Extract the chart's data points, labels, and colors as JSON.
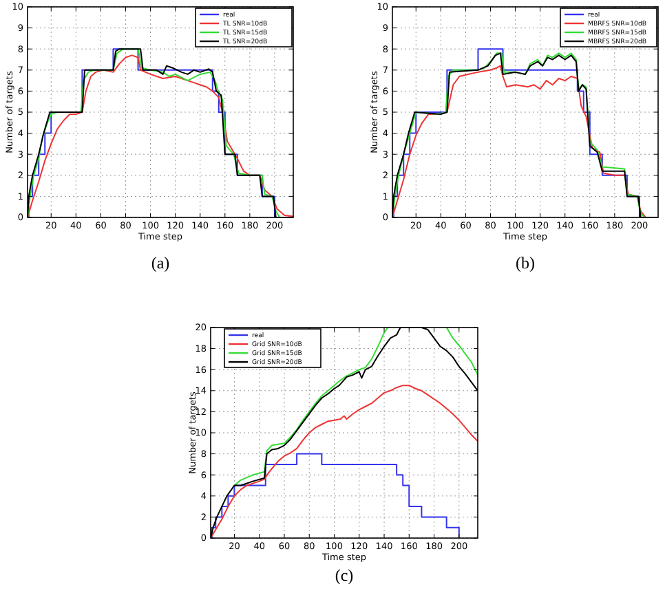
{
  "chart_data": [
    {
      "type": "line",
      "xlabel": "Time step",
      "ylabel": "Number of targets",
      "xlim": [
        1,
        215
      ],
      "xticks": [
        20,
        40,
        60,
        80,
        100,
        120,
        140,
        160,
        180,
        200
      ],
      "ylim": [
        0,
        10
      ],
      "yticks": [
        0,
        1,
        2,
        3,
        4,
        5,
        6,
        7,
        8,
        9,
        10
      ],
      "grid": true,
      "legend": "top right",
      "annotations": [
        "(a)"
      ],
      "series": [
        {
          "name": "real",
          "type": "step",
          "color": "#3333ee",
          "x": [
            1,
            2,
            5,
            10,
            15,
            20,
            45,
            70,
            90,
            150,
            155,
            160,
            170,
            190,
            200,
            215
          ],
          "values": [
            0,
            1,
            2,
            3,
            4,
            5,
            7,
            8,
            7,
            6,
            5,
            3,
            2,
            1,
            0,
            0
          ]
        },
        {
          "name": "TL SNR=10dB",
          "color": "#ee3333",
          "x": [
            1,
            5,
            10,
            15,
            20,
            25,
            30,
            35,
            40,
            45,
            48,
            52,
            56,
            62,
            70,
            75,
            80,
            85,
            90,
            92,
            100,
            110,
            120,
            125,
            130,
            135,
            140,
            145,
            150,
            155,
            158,
            162,
            166,
            170,
            175,
            180,
            188,
            192,
            198,
            202,
            208,
            215
          ],
          "values": [
            0,
            0.8,
            1.7,
            2.7,
            3.5,
            4.2,
            4.6,
            4.9,
            4.9,
            5.0,
            6.0,
            6.7,
            6.9,
            7.0,
            6.9,
            7.3,
            7.6,
            7.7,
            7.6,
            7.0,
            6.8,
            6.6,
            6.7,
            6.6,
            6.5,
            6.4,
            6.3,
            6.2,
            6.0,
            5.7,
            5.0,
            3.6,
            3.2,
            2.8,
            2.2,
            2.0,
            2.0,
            1.3,
            1.0,
            0.4,
            0.1,
            0.05
          ]
        },
        {
          "name": "TL SNR=15dB",
          "color": "#33dd33",
          "x": [
            1,
            3,
            6,
            10,
            13,
            17,
            20,
            25,
            44,
            46,
            50,
            55,
            70,
            73,
            78,
            90,
            93,
            100,
            110,
            115,
            120,
            130,
            140,
            148,
            152,
            155,
            158,
            161,
            167,
            171,
            180,
            190,
            192,
            198,
            201,
            204,
            215
          ],
          "values": [
            0,
            1,
            2,
            2.8,
            3.8,
            4.5,
            4.9,
            5,
            5,
            6.5,
            6.9,
            7,
            7,
            7.8,
            8,
            8,
            7.1,
            7,
            6.9,
            6.7,
            6.8,
            6.5,
            6.8,
            6.9,
            6.5,
            5.9,
            5.6,
            3.4,
            3.0,
            2.1,
            2.0,
            2.0,
            1.1,
            1,
            0.3,
            0,
            0
          ]
        },
        {
          "name": "TL SNR=20dB",
          "color": "#000000",
          "x": [
            1,
            2,
            5,
            10,
            14,
            19,
            45,
            47,
            70,
            72,
            75,
            92,
            94,
            105,
            110,
            113,
            118,
            125,
            130,
            135,
            140,
            147,
            150,
            153,
            157,
            160,
            168,
            170,
            188,
            190,
            199,
            201,
            215
          ],
          "values": [
            0,
            1,
            2,
            3,
            4,
            5,
            5,
            7,
            7,
            7.9,
            8,
            8,
            7,
            7,
            6.8,
            7.2,
            7.1,
            6.9,
            6.8,
            7,
            6.9,
            7.05,
            6.9,
            6,
            5.8,
            3,
            3,
            2,
            2,
            1,
            1,
            0,
            0
          ]
        }
      ]
    },
    {
      "type": "line",
      "xlabel": "Time step",
      "ylabel": "Number of targets",
      "xlim": [
        1,
        215
      ],
      "xticks": [
        20,
        40,
        60,
        80,
        100,
        120,
        140,
        160,
        180,
        200
      ],
      "ylim": [
        0,
        10
      ],
      "yticks": [
        0,
        1,
        2,
        3,
        4,
        5,
        6,
        7,
        8,
        9,
        10
      ],
      "grid": true,
      "legend": "top right",
      "annotations": [
        "(b)"
      ],
      "series": [
        {
          "name": "real",
          "type": "step",
          "color": "#3333ee",
          "x": [
            1,
            2,
            5,
            10,
            15,
            20,
            45,
            70,
            90,
            150,
            155,
            160,
            170,
            190,
            200,
            215
          ],
          "values": [
            0,
            1,
            2,
            3,
            4,
            5,
            7,
            8,
            7,
            6,
            5,
            3,
            2,
            1,
            0,
            0
          ]
        },
        {
          "name": "MBRFS SNR=10dB",
          "color": "#ee3333",
          "x": [
            1,
            5,
            10,
            15,
            20,
            25,
            30,
            38,
            45,
            50,
            55,
            62,
            70,
            80,
            85,
            88,
            90,
            93,
            100,
            110,
            115,
            120,
            125,
            130,
            135,
            140,
            145,
            150,
            153,
            157,
            162,
            168,
            171,
            180,
            188,
            191,
            198,
            201,
            205,
            215
          ],
          "values": [
            0,
            0.8,
            1.8,
            3,
            3.9,
            4.5,
            4.9,
            4.9,
            5,
            6.3,
            6.7,
            6.8,
            6.9,
            7.0,
            7.1,
            7.2,
            6.7,
            6.2,
            6.3,
            6.2,
            6.3,
            6.1,
            6.5,
            6.3,
            6.6,
            6.5,
            6.7,
            6.6,
            5.3,
            4.8,
            3.3,
            3.1,
            2.1,
            2,
            2,
            1.1,
            1,
            0.3,
            0,
            0
          ]
        },
        {
          "name": "MBRFS SNR=15dB",
          "color": "#33dd33",
          "x": [
            1,
            3,
            6,
            10,
            15,
            20,
            38,
            44,
            46,
            50,
            70,
            75,
            80,
            85,
            89,
            91,
            100,
            108,
            112,
            118,
            122,
            126,
            130,
            135,
            140,
            145,
            149,
            151,
            154,
            157,
            160,
            166,
            170,
            188,
            190,
            198,
            201,
            204,
            215
          ],
          "values": [
            0,
            1,
            2,
            3,
            4,
            5,
            4.9,
            5,
            6.7,
            7,
            7,
            7.1,
            7.4,
            7.8,
            7.8,
            6.9,
            6.9,
            6.8,
            7.3,
            7.5,
            7.2,
            7.7,
            7.6,
            7.8,
            7.6,
            7.8,
            7.5,
            6.1,
            6.3,
            6.2,
            3.6,
            3.2,
            2.4,
            2.3,
            1.1,
            1,
            0.2,
            0,
            0
          ]
        },
        {
          "name": "MBRFS SNR=20dB",
          "color": "#000000",
          "x": [
            1,
            2,
            5,
            10,
            14,
            19,
            40,
            45,
            47,
            70,
            78,
            84,
            88,
            90,
            100,
            108,
            112,
            118,
            122,
            126,
            130,
            135,
            140,
            145,
            149,
            151,
            154,
            157,
            160,
            166,
            170,
            188,
            190,
            199,
            201,
            215
          ],
          "values": [
            0,
            1,
            2,
            3,
            4,
            5,
            4.9,
            5,
            6.9,
            7,
            7.2,
            7.7,
            7.8,
            6.8,
            6.9,
            6.8,
            7.2,
            7.4,
            7.2,
            7.6,
            7.5,
            7.7,
            7.5,
            7.7,
            7.4,
            6.0,
            6.3,
            6.1,
            3.4,
            3.1,
            2.2,
            2.2,
            1.0,
            1,
            0,
            0
          ]
        }
      ]
    },
    {
      "type": "line",
      "xlabel": "Time step",
      "ylabel": "Number of targets",
      "xlim": [
        1,
        215
      ],
      "xticks": [
        20,
        40,
        60,
        80,
        100,
        120,
        140,
        160,
        180,
        200
      ],
      "ylim": [
        0,
        20
      ],
      "yticks": [
        0,
        2,
        4,
        6,
        8,
        10,
        12,
        14,
        16,
        18,
        20
      ],
      "grid": true,
      "legend": "top left",
      "annotations": [
        "(c)"
      ],
      "series": [
        {
          "name": "real",
          "type": "step",
          "color": "#3333ee",
          "x": [
            1,
            2,
            5,
            10,
            15,
            20,
            45,
            70,
            90,
            150,
            155,
            160,
            170,
            190,
            200
          ],
          "values": [
            0,
            1,
            2,
            3,
            4,
            5,
            7,
            8,
            7,
            6,
            5,
            3,
            2,
            1,
            0
          ]
        },
        {
          "name": "Grid SNR=10dB",
          "color": "#ee3333",
          "x": [
            1,
            5,
            10,
            15,
            20,
            25,
            30,
            40,
            44,
            48,
            55,
            60,
            65,
            70,
            75,
            80,
            85,
            90,
            95,
            100,
            105,
            108,
            110,
            115,
            120,
            125,
            130,
            135,
            140,
            145,
            150,
            155,
            160,
            165,
            170,
            175,
            180,
            185,
            190,
            195,
            200,
            205,
            210,
            215
          ],
          "values": [
            0,
            0.8,
            1.8,
            3,
            4,
            4.6,
            5,
            5.4,
            5.6,
            6.3,
            7.3,
            7.8,
            8.1,
            8.5,
            9.3,
            10,
            10.5,
            10.8,
            11.1,
            11.2,
            11.3,
            11.6,
            11.3,
            11.8,
            12.2,
            12.5,
            12.8,
            13.3,
            13.8,
            14,
            14.3,
            14.5,
            14.5,
            14.2,
            14,
            13.6,
            13.2,
            12.8,
            12.3,
            11.8,
            11.2,
            10.5,
            9.8,
            9.2
          ]
        },
        {
          "name": "Grid SNR=15dB",
          "color": "#33dd33",
          "x": [
            20,
            25,
            35,
            44,
            46,
            50,
            55,
            60,
            65,
            70,
            75,
            80,
            85,
            90,
            95,
            100,
            105,
            110,
            115,
            120,
            125,
            130,
            135,
            140,
            143,
            150,
            180,
            190,
            195,
            200,
            205,
            210,
            215
          ],
          "values": [
            5,
            5.5,
            6,
            6.3,
            8.3,
            8.8,
            8.9,
            9.0,
            9.6,
            10.3,
            11.2,
            12,
            12.8,
            13.5,
            14,
            14.5,
            15,
            15.4,
            15.7,
            16,
            16.2,
            17,
            18.2,
            19.5,
            20,
            null,
            null,
            20,
            19,
            18.3,
            17.5,
            16.7,
            15.5
          ]
        },
        {
          "name": "Grid SNR=20dB",
          "color": "#000000",
          "x": [
            1,
            3,
            6,
            10,
            14,
            20,
            25,
            30,
            35,
            44,
            46,
            50,
            55,
            60,
            65,
            70,
            75,
            80,
            85,
            90,
            95,
            100,
            104,
            110,
            115,
            120,
            122,
            125,
            130,
            135,
            140,
            145,
            150,
            153,
            170,
            175,
            180,
            185,
            190,
            195,
            200,
            205,
            210,
            215
          ],
          "values": [
            0,
            1,
            2,
            3,
            4,
            5,
            5,
            5.2,
            5.4,
            5.7,
            8,
            8.4,
            8.5,
            8.8,
            9.4,
            10.2,
            11,
            11.8,
            12.6,
            13.3,
            13.7,
            14.2,
            14.5,
            15.3,
            15.5,
            15.8,
            15.2,
            16,
            16.3,
            17.3,
            18.2,
            19,
            19.3,
            20,
            20,
            19.8,
            19,
            18.2,
            17.8,
            17.2,
            16.3,
            15.6,
            14.8,
            14
          ]
        }
      ]
    }
  ]
}
